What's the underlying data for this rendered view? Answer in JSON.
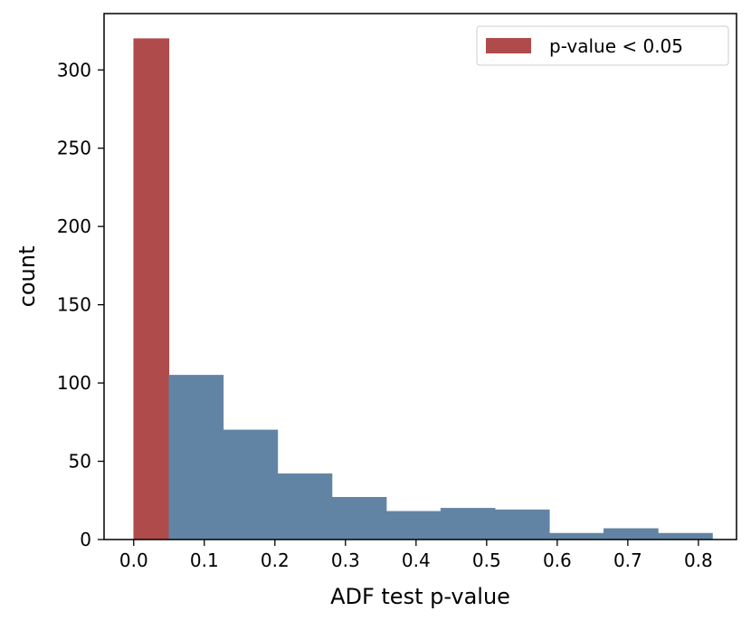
{
  "chart_data": {
    "type": "bar",
    "subtype": "histogram",
    "title": "",
    "xlabel": "ADF test p-value",
    "ylabel": "count",
    "xlim": [
      -0.042,
      0.854
    ],
    "ylim": [
      0,
      336
    ],
    "xticks": [
      0.0,
      0.1,
      0.2,
      0.3,
      0.4,
      0.5,
      0.6,
      0.7,
      0.8
    ],
    "xtick_labels": [
      "0.0",
      "0.1",
      "0.2",
      "0.3",
      "0.4",
      "0.5",
      "0.6",
      "0.7",
      "0.8"
    ],
    "yticks": [
      0,
      50,
      100,
      150,
      200,
      250,
      300
    ],
    "ytick_labels": [
      "0",
      "50",
      "100",
      "150",
      "200",
      "250",
      "300"
    ],
    "grid": false,
    "legend": {
      "position": "top-right",
      "entries": [
        "p-value < 0.05"
      ]
    },
    "series": [
      {
        "name": "p-value < 0.05",
        "color": "#b04b4b",
        "bins": [
          {
            "x0": 0.0,
            "x1": 0.05,
            "count": 320
          }
        ]
      },
      {
        "color": "#6284a4",
        "bins": [
          {
            "x0": 0.05,
            "x1": 0.127,
            "count": 105
          },
          {
            "x0": 0.127,
            "x1": 0.204,
            "count": 70
          },
          {
            "x0": 0.204,
            "x1": 0.281,
            "count": 42
          },
          {
            "x0": 0.281,
            "x1": 0.358,
            "count": 27
          },
          {
            "x0": 0.358,
            "x1": 0.435,
            "count": 18
          },
          {
            "x0": 0.435,
            "x1": 0.512,
            "count": 20
          },
          {
            "x0": 0.512,
            "x1": 0.589,
            "count": 19
          },
          {
            "x0": 0.589,
            "x1": 0.666,
            "count": 4
          },
          {
            "x0": 0.666,
            "x1": 0.743,
            "count": 7
          },
          {
            "x0": 0.743,
            "x1": 0.82,
            "count": 4
          }
        ]
      }
    ]
  }
}
